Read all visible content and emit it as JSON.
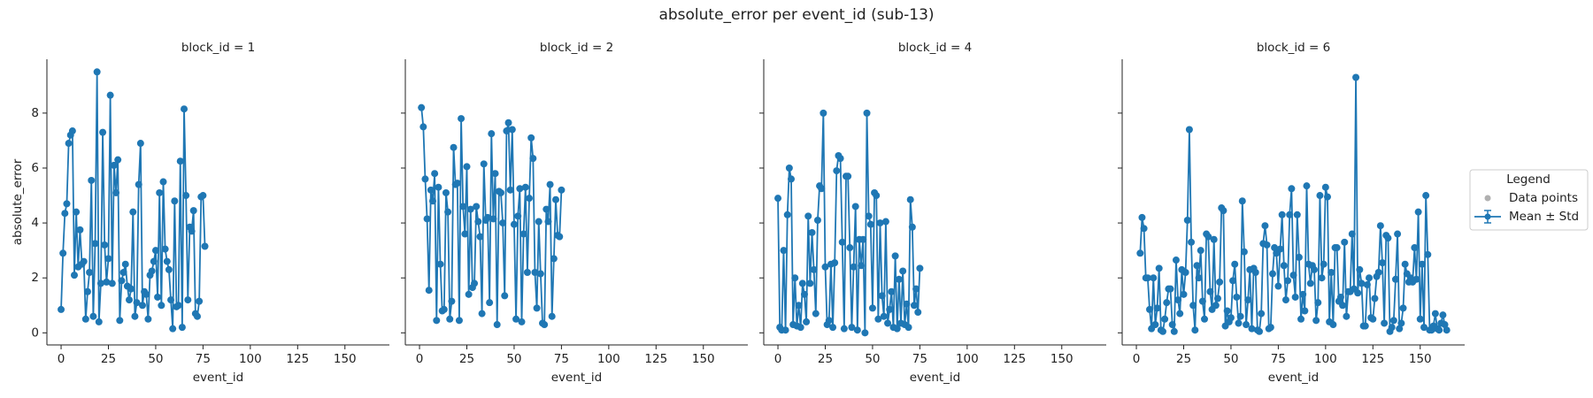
{
  "title": "absolute_error per event_id (sub-13)",
  "legend": {
    "title": "Legend",
    "entries": [
      {
        "label": "Data points",
        "color": "#b0b0b0"
      },
      {
        "label": "Mean ± Std",
        "color": "#1f77b4"
      }
    ]
  },
  "chart_data": [
    {
      "type": "line",
      "title": "block_id = 1",
      "xlabel": "event_id",
      "ylabel": "absolute_error",
      "color": "#1f77b4",
      "xlim": [
        -7.5,
        173.5
      ],
      "xticks": [
        0,
        25,
        50,
        75,
        100,
        125,
        150
      ],
      "ylim": [
        -0.44,
        9.96
      ],
      "yticks": [
        0,
        2,
        4,
        6,
        8
      ],
      "x": [
        0,
        1,
        2,
        3,
        4,
        5,
        6,
        7,
        8,
        9,
        10,
        11,
        12,
        13,
        14,
        15,
        16,
        17,
        18,
        19,
        20,
        21,
        22,
        23,
        24,
        25,
        26,
        27,
        28,
        29,
        30,
        31,
        32,
        33,
        34,
        35,
        36,
        37,
        38,
        39,
        40,
        41,
        42,
        43,
        44,
        45,
        46,
        47,
        48,
        49,
        50,
        51,
        52,
        53,
        54,
        55,
        56,
        57,
        58,
        59,
        60,
        61,
        62,
        63,
        64,
        65,
        66,
        67,
        68,
        69,
        70,
        71,
        72,
        73,
        74,
        75,
        76
      ],
      "values": [
        0.85,
        2.9,
        4.35,
        4.7,
        6.9,
        7.2,
        7.35,
        2.1,
        4.4,
        2.4,
        3.75,
        2.5,
        2.6,
        0.5,
        1.5,
        2.2,
        5.55,
        0.6,
        3.25,
        9.5,
        0.4,
        1.8,
        7.3,
        3.2,
        1.85,
        2.7,
        8.65,
        1.8,
        6.1,
        5.1,
        6.3,
        0.45,
        1.9,
        2.2,
        2.5,
        1.7,
        1.2,
        1.6,
        4.4,
        0.6,
        1.1,
        5.4,
        6.9,
        1.0,
        1.5,
        1.4,
        0.5,
        2.1,
        2.25,
        2.6,
        3.0,
        1.3,
        5.1,
        1.0,
        5.5,
        3.05,
        2.6,
        2.3,
        1.2,
        0.15,
        4.8,
        0.95,
        1.0,
        6.25,
        0.2,
        8.15,
        5.0,
        1.2,
        3.85,
        3.7,
        4.45,
        0.7,
        0.6,
        1.15,
        4.95,
        5.0,
        3.15
      ]
    },
    {
      "type": "line",
      "title": "block_id = 2",
      "xlabel": "event_id",
      "color": "#1f77b4",
      "xlim": [
        -7.5,
        173.5
      ],
      "xticks": [
        0,
        25,
        50,
        75,
        100,
        125,
        150
      ],
      "ylim": [
        -0.44,
        9.96
      ],
      "x": [
        1,
        2,
        3,
        4,
        5,
        6,
        7,
        8,
        9,
        10,
        11,
        12,
        13,
        14,
        15,
        16,
        17,
        18,
        19,
        20,
        21,
        22,
        23,
        24,
        25,
        26,
        27,
        28,
        29,
        30,
        31,
        32,
        33,
        34,
        35,
        36,
        37,
        38,
        39,
        40,
        41,
        42,
        43,
        44,
        45,
        46,
        47,
        48,
        49,
        50,
        51,
        52,
        53,
        54,
        55,
        56,
        57,
        58,
        59,
        60,
        61,
        62,
        63,
        64,
        65,
        66,
        67,
        68,
        69,
        70,
        71,
        72,
        73,
        74,
        75
      ],
      "values": [
        8.2,
        7.5,
        5.6,
        4.15,
        1.55,
        5.2,
        4.8,
        5.8,
        0.45,
        5.3,
        2.5,
        0.8,
        0.85,
        5.1,
        4.4,
        0.5,
        1.15,
        6.75,
        5.4,
        5.45,
        0.45,
        7.8,
        4.6,
        3.6,
        6.05,
        1.4,
        4.5,
        1.65,
        1.8,
        4.6,
        4.05,
        3.5,
        0.7,
        6.15,
        4.1,
        4.2,
        1.1,
        7.25,
        4.15,
        5.8,
        0.3,
        5.15,
        5.1,
        4.0,
        1.35,
        7.35,
        7.65,
        5.2,
        7.4,
        3.95,
        0.5,
        4.25,
        5.25,
        0.4,
        3.6,
        5.3,
        2.2,
        4.9,
        7.1,
        6.35,
        2.2,
        0.9,
        4.05,
        2.15,
        0.35,
        0.3,
        4.5,
        4.05,
        5.4,
        0.6,
        2.7,
        4.85,
        3.55,
        3.5,
        5.2
      ]
    },
    {
      "type": "line",
      "title": "block_id = 4",
      "xlabel": "event_id",
      "color": "#1f77b4",
      "xlim": [
        -7.5,
        173.5
      ],
      "xticks": [
        0,
        25,
        50,
        75,
        100,
        125,
        150
      ],
      "ylim": [
        -0.44,
        9.96
      ],
      "x": [
        0,
        1,
        2,
        3,
        4,
        5,
        6,
        7,
        8,
        9,
        10,
        11,
        12,
        13,
        14,
        15,
        16,
        17,
        18,
        19,
        20,
        21,
        22,
        23,
        24,
        25,
        26,
        27,
        28,
        29,
        30,
        31,
        32,
        33,
        34,
        35,
        36,
        37,
        38,
        39,
        40,
        41,
        42,
        43,
        44,
        45,
        46,
        47,
        48,
        49,
        50,
        51,
        52,
        53,
        54,
        55,
        56,
        57,
        58,
        59,
        60,
        61,
        62,
        63,
        64,
        65,
        66,
        67,
        68,
        69,
        70,
        71,
        72,
        73,
        74,
        75
      ],
      "values": [
        4.9,
        0.2,
        0.1,
        3.0,
        0.1,
        4.3,
        6.0,
        5.6,
        0.3,
        2.0,
        0.25,
        1.0,
        0.2,
        1.8,
        1.4,
        0.4,
        4.25,
        1.8,
        3.65,
        2.3,
        0.7,
        4.1,
        5.35,
        5.25,
        8.0,
        2.4,
        0.3,
        0.45,
        2.5,
        0.2,
        2.55,
        5.9,
        6.45,
        6.35,
        3.3,
        0.15,
        5.7,
        5.7,
        3.1,
        0.2,
        2.4,
        4.6,
        0.1,
        3.4,
        2.45,
        3.4,
        0.0,
        8.0,
        4.25,
        3.95,
        0.9,
        5.1,
        5.0,
        0.5,
        4.0,
        1.35,
        0.6,
        4.05,
        0.35,
        0.85,
        1.5,
        0.2,
        2.8,
        0.15,
        1.95,
        0.35,
        2.25,
        0.3,
        1.05,
        0.2,
        4.85,
        3.85,
        1.0,
        1.6,
        0.75,
        2.35
      ]
    },
    {
      "type": "line",
      "title": "block_id = 6",
      "xlabel": "event_id",
      "color": "#1f77b4",
      "xlim": [
        -7.5,
        173.5
      ],
      "xticks": [
        0,
        25,
        50,
        75,
        100,
        125,
        150
      ],
      "ylim": [
        -0.44,
        9.96
      ],
      "x": [
        2,
        3,
        4,
        5,
        6,
        7,
        8,
        9,
        10,
        11,
        12,
        13,
        14,
        15,
        16,
        17,
        18,
        19,
        20,
        21,
        22,
        23,
        24,
        25,
        26,
        27,
        28,
        29,
        30,
        31,
        32,
        33,
        34,
        35,
        36,
        37,
        38,
        39,
        40,
        41,
        42,
        43,
        44,
        45,
        46,
        47,
        48,
        49,
        50,
        51,
        52,
        53,
        54,
        55,
        56,
        57,
        58,
        59,
        60,
        61,
        62,
        63,
        64,
        65,
        66,
        67,
        68,
        69,
        70,
        71,
        72,
        73,
        74,
        75,
        76,
        77,
        78,
        79,
        80,
        81,
        82,
        83,
        84,
        85,
        86,
        87,
        88,
        89,
        90,
        91,
        92,
        93,
        94,
        95,
        96,
        97,
        98,
        99,
        100,
        101,
        102,
        103,
        104,
        105,
        106,
        107,
        108,
        109,
        110,
        111,
        112,
        113,
        114,
        115,
        116,
        117,
        118,
        119,
        120,
        121,
        122,
        123,
        124,
        125,
        126,
        127,
        128,
        129,
        130,
        131,
        132,
        133,
        134,
        135,
        136,
        137,
        138,
        139,
        140,
        141,
        142,
        143,
        144,
        145,
        146,
        147,
        148,
        149,
        150,
        151,
        152,
        153,
        154,
        155,
        156,
        157,
        158,
        159,
        160,
        161,
        162,
        163,
        164
      ],
      "values": [
        2.9,
        4.2,
        3.8,
        2.0,
        2.0,
        0.85,
        0.15,
        2.0,
        0.3,
        0.9,
        2.35,
        0.1,
        0.05,
        0.5,
        1.1,
        1.6,
        1.6,
        0.3,
        0.05,
        2.65,
        1.2,
        0.7,
        2.3,
        1.4,
        2.2,
        4.1,
        7.4,
        3.3,
        1.0,
        0.1,
        2.45,
        2.0,
        3.0,
        1.15,
        0.5,
        3.6,
        3.5,
        1.5,
        0.85,
        3.4,
        1.0,
        1.25,
        1.85,
        4.55,
        4.45,
        0.25,
        0.8,
        0.4,
        0.55,
        1.9,
        2.5,
        1.3,
        0.35,
        0.6,
        4.8,
        2.95,
        0.3,
        1.2,
        2.3,
        0.15,
        2.35,
        2.2,
        0.1,
        0.05,
        0.7,
        3.25,
        3.9,
        3.2,
        0.15,
        0.2,
        2.15,
        3.1,
        2.9,
        1.7,
        3.05,
        4.3,
        2.45,
        1.2,
        1.9,
        4.3,
        5.25,
        2.1,
        1.3,
        4.3,
        2.75,
        0.5,
        1.4,
        0.8,
        5.35,
        2.5,
        1.8,
        2.45,
        2.3,
        0.45,
        1.1,
        5.0,
        2.0,
        2.5,
        5.3,
        4.95,
        0.4,
        2.2,
        0.3,
        3.1,
        3.1,
        1.15,
        1.3,
        1.0,
        3.3,
        0.6,
        1.5,
        1.5,
        3.6,
        1.6,
        9.3,
        1.45,
        2.3,
        1.8,
        0.25,
        0.25,
        1.75,
        2.0,
        0.55,
        0.5,
        1.25,
        2.05,
        2.2,
        3.9,
        2.55,
        0.35,
        3.55,
        3.45,
        0.05,
        0.2,
        0.45,
        1.95,
        3.6,
        0.15,
        0.35,
        0.9,
        2.5,
        2.15,
        1.85,
        2.0,
        1.85,
        3.1,
        1.95,
        4.4,
        0.5,
        2.5,
        0.2,
        5.0,
        2.85,
        0.1,
        0.1,
        0.25,
        0.7,
        0.15,
        0.1,
        0.35,
        0.65,
        0.3,
        0.1
      ]
    }
  ]
}
